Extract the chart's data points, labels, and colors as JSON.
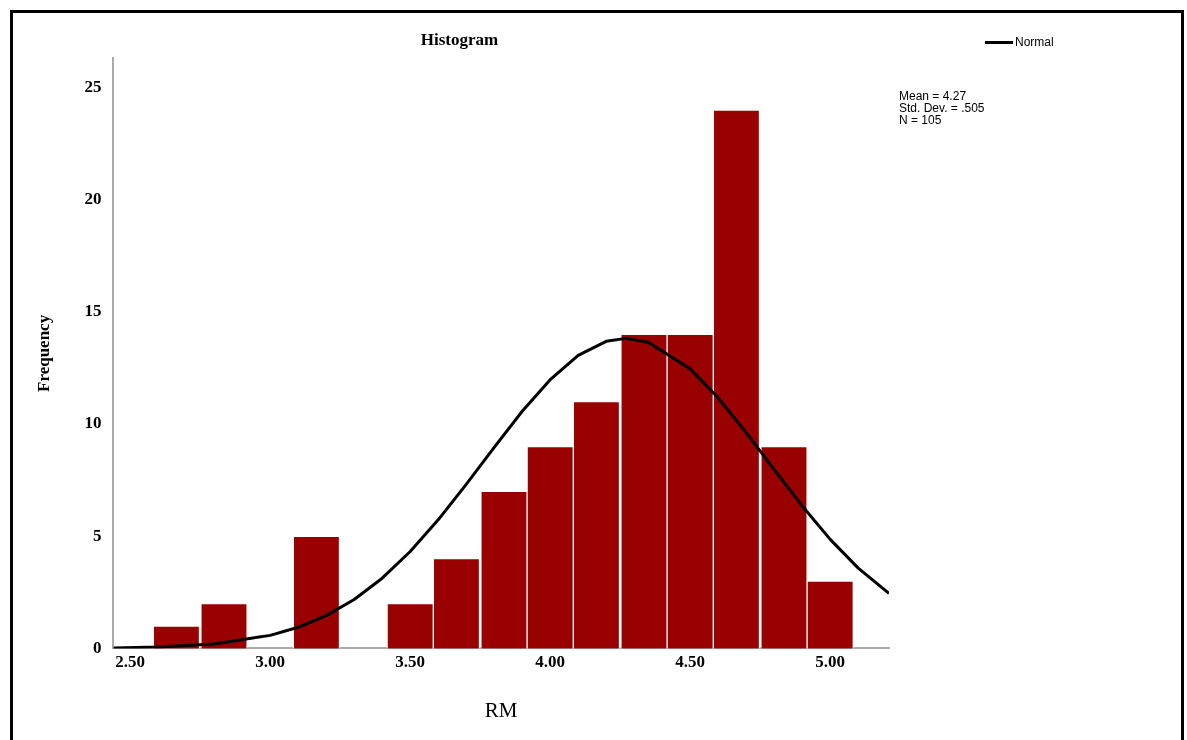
{
  "chart_data": {
    "type": "histogram",
    "title": "Histogram",
    "xlabel": "RM",
    "ylabel": "Frequency",
    "bins": [
      2.58,
      2.75,
      2.92,
      3.08,
      3.25,
      3.42,
      3.58,
      3.75,
      3.92,
      4.08,
      4.25,
      4.42,
      4.58,
      4.75,
      4.92,
      5.08
    ],
    "values": [
      1,
      2,
      0,
      5,
      0,
      2,
      4,
      7,
      9,
      11,
      14,
      14,
      24,
      9,
      3
    ],
    "color": "#990000",
    "series": [
      {
        "type": "line",
        "name": "Normal",
        "color": "#000000",
        "x": [
          2.44,
          2.6,
          2.8,
          3.0,
          3.1,
          3.2,
          3.3,
          3.4,
          3.5,
          3.6,
          3.7,
          3.8,
          3.9,
          4.0,
          4.1,
          4.2,
          4.27,
          4.35,
          4.5,
          4.6,
          4.7,
          4.8,
          4.9,
          5.0,
          5.1,
          5.21
        ],
        "values": [
          0.02,
          0.06,
          0.2,
          0.58,
          0.94,
          1.46,
          2.18,
          3.13,
          4.32,
          5.73,
          7.31,
          8.96,
          10.57,
          11.98,
          13.06,
          13.69,
          13.82,
          13.65,
          12.46,
          11.16,
          9.62,
          7.97,
          6.35,
          4.86,
          3.58,
          2.45
        ]
      }
    ],
    "xlim": [
      2.44,
      5.21
    ],
    "xticks": [
      {
        "value": 2.5,
        "label": "2.50"
      },
      {
        "value": 3,
        "label": "3.00"
      },
      {
        "value": 3.5,
        "label": "3.50"
      },
      {
        "value": 4,
        "label": "4.00"
      },
      {
        "value": 4.5,
        "label": "4.50"
      },
      {
        "value": 5,
        "label": "5.00"
      }
    ],
    "ylim": [
      0,
      26.3
    ],
    "yticks": [
      0,
      5,
      10,
      15,
      20,
      25
    ],
    "grid": false,
    "legend": "top right",
    "marker": "none",
    "line_style": "solid",
    "annotations": [
      "Mean = 4.27",
      "Std. Dev. = .505",
      "N = 105"
    ]
  }
}
